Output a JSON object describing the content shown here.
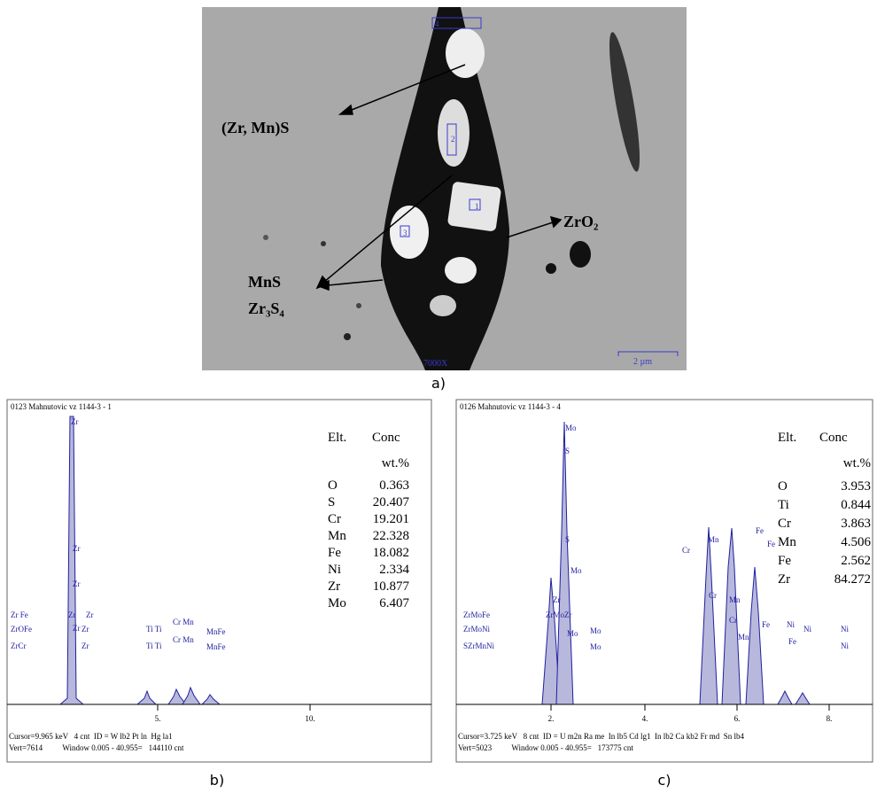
{
  "panel_a": {
    "caption": "a)",
    "labels": [
      "(Zr, Mn)S",
      "ZrO₂",
      "MnS",
      "Zr₃S₄"
    ],
    "magnification": "7000X",
    "scale_bar": "2 µm",
    "markers": [
      "1",
      "2",
      "3",
      "4"
    ]
  },
  "panel_b": {
    "caption": "b)",
    "header": "0123 Mahnutovic vz 1144-3 - 1",
    "table": {
      "columns": [
        "Elt.",
        "Conc"
      ],
      "unit": "wt.%",
      "rows": [
        [
          "O",
          "0.363"
        ],
        [
          "S",
          "20.407"
        ],
        [
          "Cr",
          "19.201"
        ],
        [
          "Mn",
          "22.328"
        ],
        [
          "Fe",
          "18.082"
        ],
        [
          "Ni",
          "2.334"
        ],
        [
          "Zr",
          "10.877"
        ],
        [
          "Mo",
          "6.407"
        ]
      ]
    },
    "ticks": [
      "5.",
      "10."
    ],
    "peak_labels": [
      "Zr",
      "Zr",
      "Zr",
      "Zr",
      "Zr",
      "Zr",
      "Zr  Fe",
      "ZrOFe",
      "ZrCr",
      "Zr",
      "Zr",
      "Ti Ti",
      "Ti Ti",
      "Cr Mn",
      "Cr Mn",
      "MnFe",
      "MnFe"
    ],
    "footer": [
      "Cursor=9.965 keV   4 cnt  ID = W lb2 Pt ln  Hg la1",
      "Vert=7614          Window 0.005 - 40.955=   144110 cnt"
    ]
  },
  "panel_c": {
    "caption": "c)",
    "header": "0126 Mahnutovic vz 1144-3 - 4",
    "table": {
      "columns": [
        "Elt.",
        "Conc"
      ],
      "unit": "wt.%",
      "rows": [
        [
          "O",
          "3.953"
        ],
        [
          "Ti",
          "0.844"
        ],
        [
          "Cr",
          "3.863"
        ],
        [
          "Mn",
          "4.506"
        ],
        [
          "Fe",
          "2.562"
        ],
        [
          "Zr",
          "84.272"
        ]
      ]
    },
    "ticks": [
      "2.",
      "4.",
      "6.",
      "8."
    ],
    "peak_labels": [
      "Mo",
      "S",
      "S",
      "Mo",
      "Zr",
      "ZrMoZr",
      "Mo",
      "Mo",
      "Mo",
      "ZrMoFe",
      "ZrMoNi",
      "SZrMnNi",
      "Cr",
      "Mn",
      "Cr",
      "Mn",
      "Cr",
      "Fe",
      "Fe",
      "Mn",
      "Fe",
      "Ni",
      "Fe",
      "Ni",
      "Ni",
      "Ni"
    ],
    "footer": [
      "Cursor=3.725 keV   8 cnt  ID = U m2n Ra me  In lb5 Cd lg1  In lb2 Ca kb2 Fr md  Sn lb4",
      "Vert=5023          Window 0.005 - 40.955=   173775 cnt"
    ]
  }
}
